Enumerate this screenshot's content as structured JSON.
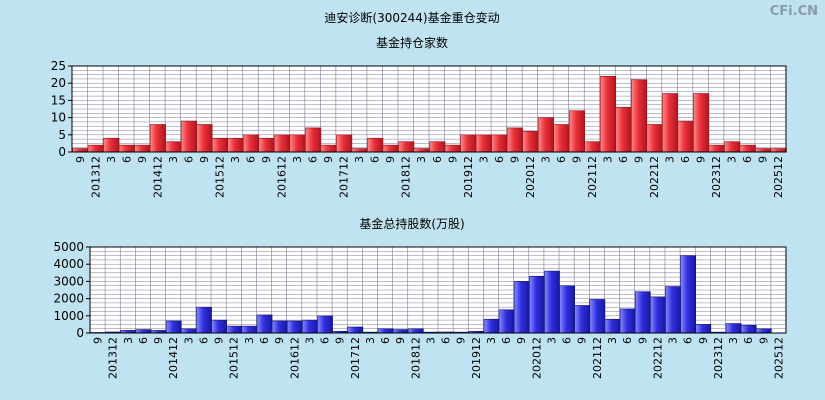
{
  "page_title": "迪安诊断(300244)基金重仓变动",
  "watermark": "CFi.CN",
  "colors": {
    "background": "#bfe3f0",
    "plot_bg": "#ffffff",
    "grid": "#7a7a9a",
    "bar_red": "#e8303a",
    "bar_blue": "#3030e0"
  },
  "chart_data": [
    {
      "type": "bar",
      "title": "基金持仓家数",
      "ylim": [
        0,
        25
      ],
      "yticks": [
        0,
        5,
        10,
        15,
        20,
        25
      ],
      "xlabel": "",
      "ylabel": "",
      "tick_labels": [
        "9",
        "201312",
        "3",
        "6",
        "9",
        "201412",
        "3",
        "6",
        "9",
        "201512",
        "3",
        "6",
        "9",
        "201612",
        "3",
        "6",
        "9",
        "201712",
        "3",
        "6",
        "9",
        "201812",
        "3",
        "6",
        "9",
        "201912",
        "3",
        "6",
        "9",
        "202012",
        "3",
        "6",
        "9",
        "202112",
        "3",
        "6",
        "9",
        "202212",
        "3",
        "6",
        "9",
        "202312",
        "3",
        "6",
        "9",
        "202512"
      ],
      "values": [
        1,
        2,
        4,
        2,
        2,
        8,
        3,
        9,
        8,
        4,
        4,
        5,
        4,
        5,
        5,
        7,
        2,
        5,
        1,
        4,
        2,
        3,
        1,
        3,
        2,
        5,
        5,
        5,
        7,
        6,
        10,
        8,
        12,
        3,
        22,
        13,
        21,
        8,
        17,
        9,
        17,
        2,
        3,
        2,
        1,
        1
      ]
    },
    {
      "type": "bar",
      "title": "基金总持股数(万股)",
      "ylim": [
        0,
        5000
      ],
      "yticks": [
        0,
        1000,
        2000,
        3000,
        4000,
        5000
      ],
      "xlabel": "",
      "ylabel": "",
      "tick_labels": [
        "9",
        "201312",
        "3",
        "6",
        "9",
        "201412",
        "3",
        "6",
        "9",
        "201512",
        "3",
        "6",
        "9",
        "201612",
        "3",
        "6",
        "9",
        "201712",
        "3",
        "6",
        "9",
        "201812",
        "3",
        "6",
        "9",
        "201912",
        "3",
        "6",
        "9",
        "202012",
        "3",
        "6",
        "9",
        "202112",
        "3",
        "6",
        "9",
        "202212",
        "3",
        "6",
        "9",
        "202312",
        "3",
        "6",
        "9",
        "202512"
      ],
      "values": [
        30,
        60,
        150,
        200,
        150,
        700,
        250,
        1500,
        750,
        400,
        400,
        1050,
        700,
        700,
        750,
        1000,
        100,
        350,
        50,
        250,
        200,
        250,
        50,
        60,
        50,
        100,
        800,
        1350,
        3000,
        3300,
        3600,
        2750,
        1600,
        1950,
        800,
        1400,
        2400,
        2100,
        2700,
        4500,
        500,
        50,
        550,
        450,
        250,
        0
      ]
    }
  ]
}
